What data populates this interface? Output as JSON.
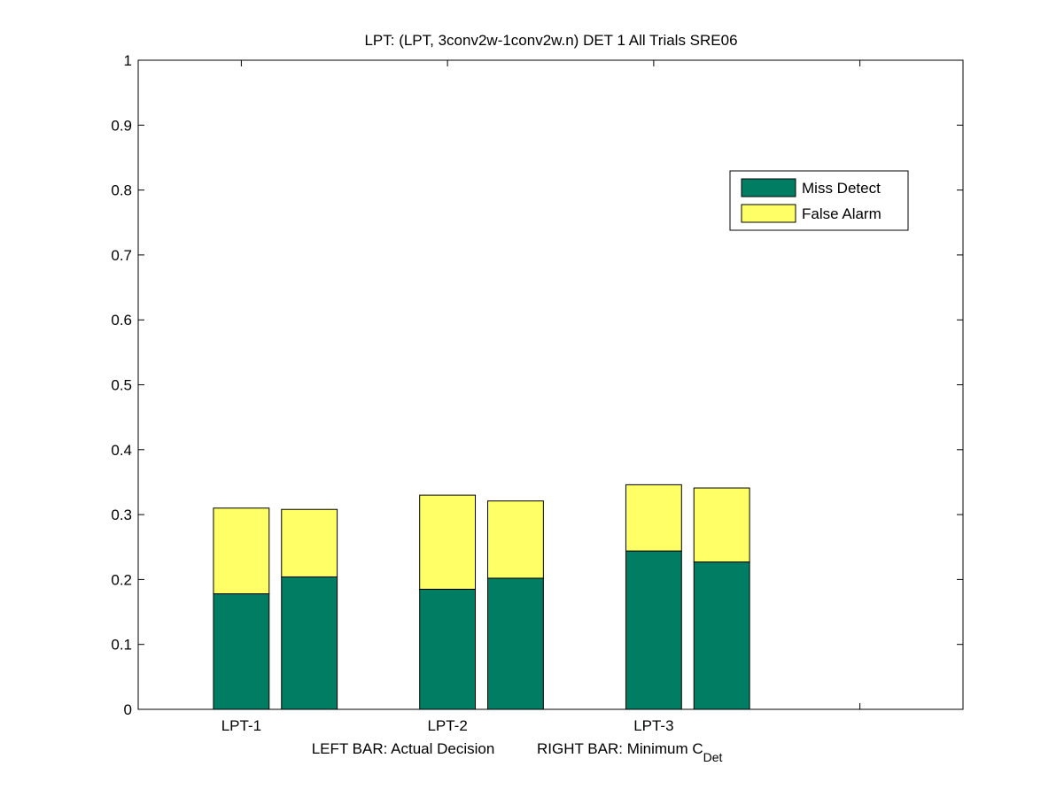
{
  "chart_data": {
    "type": "bar",
    "stacked": true,
    "title": "LPT: (LPT, 3conv2w-1conv2w.n) DET 1 All Trials SRE06",
    "xlabel": {
      "left": "LEFT BAR: Actual Decision",
      "right_main": "RIGHT BAR: Minimum C",
      "right_sub": "Det"
    },
    "ylabel": "",
    "ylim": [
      0,
      1
    ],
    "yticks": [
      "0",
      "0.1",
      "0.2",
      "0.3",
      "0.4",
      "0.5",
      "0.6",
      "0.7",
      "0.8",
      "0.9",
      "1"
    ],
    "xlim": [
      0.5,
      4.5
    ],
    "categories": [
      "LPT-1",
      "LPT-2",
      "LPT-3"
    ],
    "bars_per_category": [
      "Actual Decision",
      "Minimum C_Det"
    ],
    "series": [
      {
        "name": "Miss Detect",
        "color": "#017d63",
        "values": [
          [
            0.178,
            0.204
          ],
          [
            0.185,
            0.202
          ],
          [
            0.244,
            0.227
          ]
        ]
      },
      {
        "name": "False Alarm",
        "color": "#ffff66",
        "values": [
          [
            0.132,
            0.104
          ],
          [
            0.145,
            0.119
          ],
          [
            0.102,
            0.114
          ]
        ]
      }
    ],
    "legend_position": "top-right",
    "grid": false
  }
}
